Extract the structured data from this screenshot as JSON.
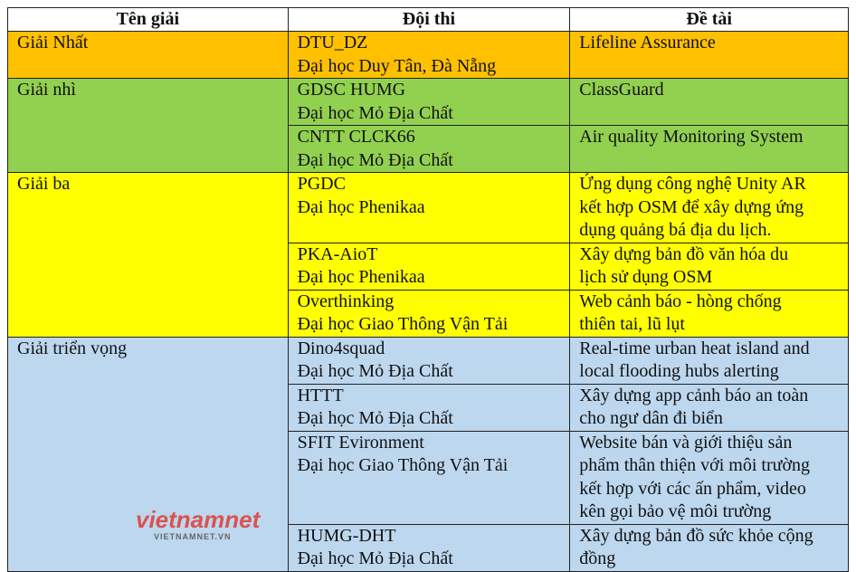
{
  "headers": [
    "Tên giải",
    "Đội thi",
    "Đề tài"
  ],
  "colors": {
    "first": "#FFC000",
    "second": "#92D050",
    "third": "#FFFF00",
    "promising": "#BDD7EE"
  },
  "groups": [
    {
      "prize": "Giải Nhất",
      "color": "#FFC000",
      "rows": [
        {
          "team": "DTU_DZ",
          "school": "Đại học Duy Tân, Đà Nẵng",
          "topic": [
            "Lifeline Assurance"
          ]
        }
      ]
    },
    {
      "prize": "Giải nhì",
      "color": "#92D050",
      "rows": [
        {
          "team": "GDSC HUMG",
          "school": "Đại học Mỏ Địa Chất",
          "topic": [
            "ClassGuard"
          ]
        },
        {
          "team": "CNTT CLCK66",
          "school": "Đại học Mỏ Địa Chất",
          "topic": [
            "Air quality Monitoring System"
          ]
        }
      ]
    },
    {
      "prize": "Giải ba",
      "color": "#FFFF00",
      "rows": [
        {
          "team": "PGDC",
          "school": "Đại học Phenikaa",
          "topic": [
            "Ứng dụng công nghệ Unity AR",
            "kết hợp OSM để xây dựng ứng",
            "dụng quảng bá địa du lịch."
          ]
        },
        {
          "team": "PKA-AioT",
          "school": "Đại học Phenikaa",
          "topic": [
            "Xây dựng bản đồ văn hóa du",
            "lịch sử dụng OSM"
          ]
        },
        {
          "team": "Overthinking",
          "school": "Đại học Giao Thông Vận Tải",
          "topic": [
            "Web cảnh báo - hòng chống",
            "thiên tai, lũ lụt"
          ]
        }
      ]
    },
    {
      "prize": "Giải triển vọng",
      "color": "#BDD7EE",
      "rows": [
        {
          "team": "Dino4squad",
          "school": "Đại học Mỏ Địa Chất",
          "topic": [
            "Real-time urban heat island and",
            "local flooding hubs alerting"
          ]
        },
        {
          "team": "HTTT",
          "school": "Đại học Mỏ Địa Chất",
          "topic": [
            "Xây dựng app cảnh báo an toàn",
            "cho ngư dân đi biển"
          ]
        },
        {
          "team": "SFIT Evironment",
          "school": "Đại học Giao Thông Vận Tải",
          "topic": [
            "Website bán và giới thiệu sản",
            "phẩm thân thiện với môi trường",
            "kết hợp với các ấn phẩm, video",
            "kên gọi bảo vệ môi trường"
          ]
        },
        {
          "team": "HUMG-DHT",
          "school": "Đại học Mỏ Địa Chất",
          "topic": [
            "Xây dựng bản đồ sức khỏe cộng",
            "đồng"
          ]
        }
      ]
    }
  ],
  "watermark": {
    "logo": "vietnamnet",
    "url": "VIETNAMNET.VN"
  }
}
